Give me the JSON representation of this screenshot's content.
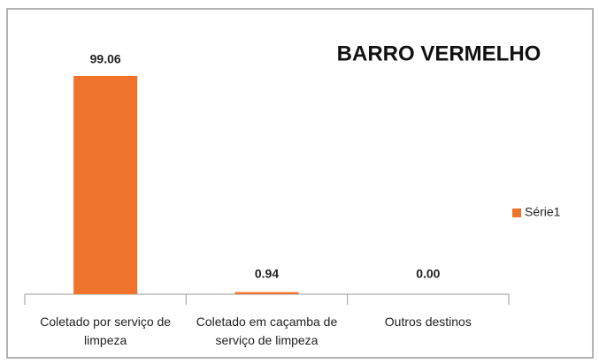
{
  "chart_data": {
    "type": "bar",
    "title": "BARRO VERMELHO",
    "categories": [
      "Coletado por serviço de limpeza",
      "Coletado em caçamba de serviço de limpeza",
      "Outros destinos"
    ],
    "series": [
      {
        "name": "Série1",
        "color": "#f0732b",
        "values": [
          99.06,
          0.94,
          0.0
        ],
        "value_labels": [
          "99.06",
          "0.94",
          "0.00"
        ]
      }
    ]
  }
}
